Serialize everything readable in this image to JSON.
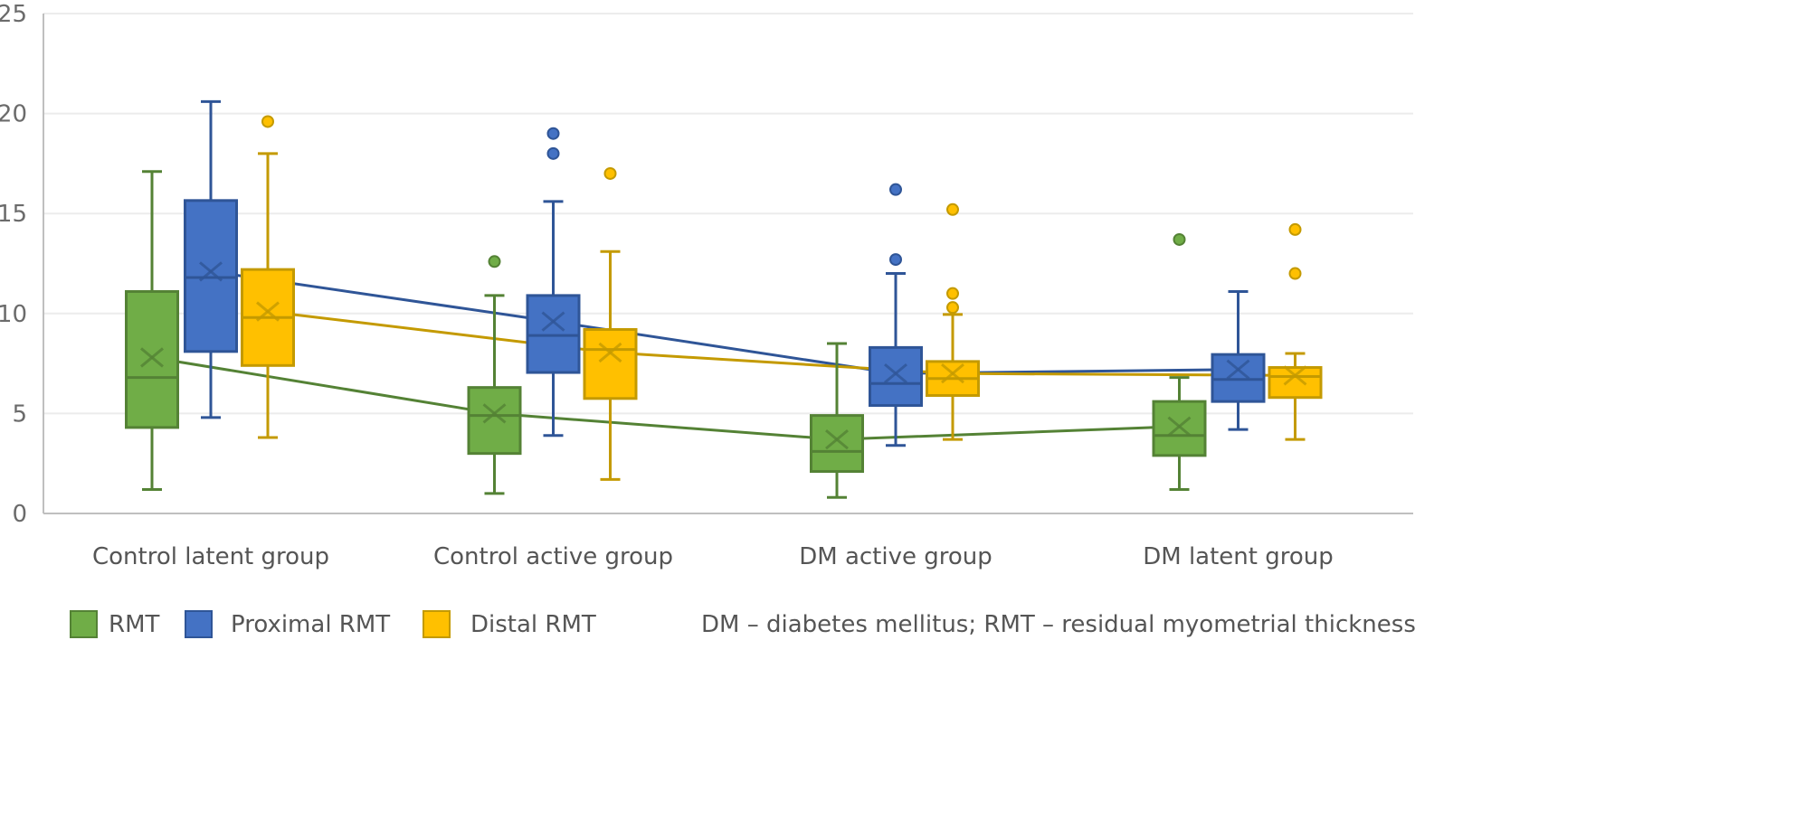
{
  "chart_data": {
    "type": "boxplot",
    "title": "",
    "xlabel": "",
    "ylabel": "",
    "ylim": [
      0,
      25
    ],
    "yticks": [
      0,
      5,
      10,
      15,
      20,
      25
    ],
    "grid": true,
    "legend_position": "bottom",
    "categories": [
      "Control latent group",
      "Control active group",
      "DM active group",
      "DM latent group"
    ],
    "series": [
      {
        "name": "RMT",
        "fill": "#70ad47",
        "stroke": "#548235",
        "boxes": [
          {
            "min": 1.2,
            "q1": 4.3,
            "median": 6.8,
            "q3": 11.1,
            "max": 17.1,
            "mean": 7.8,
            "outliers": []
          },
          {
            "min": 1.0,
            "q1": 3.0,
            "median": 4.9,
            "q3": 6.3,
            "max": 10.9,
            "mean": 5.0,
            "outliers": [
              12.6
            ]
          },
          {
            "min": 0.8,
            "q1": 2.1,
            "median": 3.1,
            "q3": 4.9,
            "max": 8.5,
            "mean": 3.7,
            "outliers": []
          },
          {
            "min": 1.2,
            "q1": 2.9,
            "median": 3.9,
            "q3": 5.6,
            "max": 6.8,
            "mean": 4.35,
            "outliers": [
              13.7
            ]
          }
        ]
      },
      {
        "name": "Proximal RMT",
        "fill": "#4472c4",
        "stroke": "#2f5597",
        "boxes": [
          {
            "min": 4.8,
            "q1": 8.1,
            "median": 11.8,
            "q3": 15.65,
            "max": 20.6,
            "mean": 12.1,
            "outliers": []
          },
          {
            "min": 3.9,
            "q1": 7.05,
            "median": 8.9,
            "q3": 10.9,
            "max": 15.6,
            "mean": 9.6,
            "outliers": [
              18.0,
              19.0
            ]
          },
          {
            "min": 3.4,
            "q1": 5.4,
            "median": 6.5,
            "q3": 8.3,
            "max": 12.0,
            "mean": 7.0,
            "outliers": [
              12.7,
              16.2
            ]
          },
          {
            "min": 4.2,
            "q1": 5.6,
            "median": 6.7,
            "q3": 7.95,
            "max": 11.1,
            "mean": 7.2,
            "outliers": []
          }
        ]
      },
      {
        "name": "Distal RMT",
        "fill": "#ffc000",
        "stroke": "#c49a00",
        "boxes": [
          {
            "min": 3.8,
            "q1": 7.4,
            "median": 9.8,
            "q3": 12.2,
            "max": 18.0,
            "mean": 10.1,
            "outliers": [
              19.6
            ]
          },
          {
            "min": 1.7,
            "q1": 5.75,
            "median": 8.2,
            "q3": 9.2,
            "max": 13.1,
            "mean": 8.05,
            "outliers": [
              17.0
            ]
          },
          {
            "min": 3.7,
            "q1": 5.9,
            "median": 6.75,
            "q3": 7.6,
            "max": 9.95,
            "mean": 7.0,
            "outliers": [
              10.3,
              11.0,
              15.2
            ]
          },
          {
            "min": 3.7,
            "q1": 5.8,
            "median": 6.85,
            "q3": 7.3,
            "max": 8.0,
            "mean": 6.9,
            "outliers": [
              12.0,
              14.2
            ]
          }
        ]
      }
    ],
    "note": "DM – diabetes mellitus; RMT – residual myometrial thickness"
  }
}
